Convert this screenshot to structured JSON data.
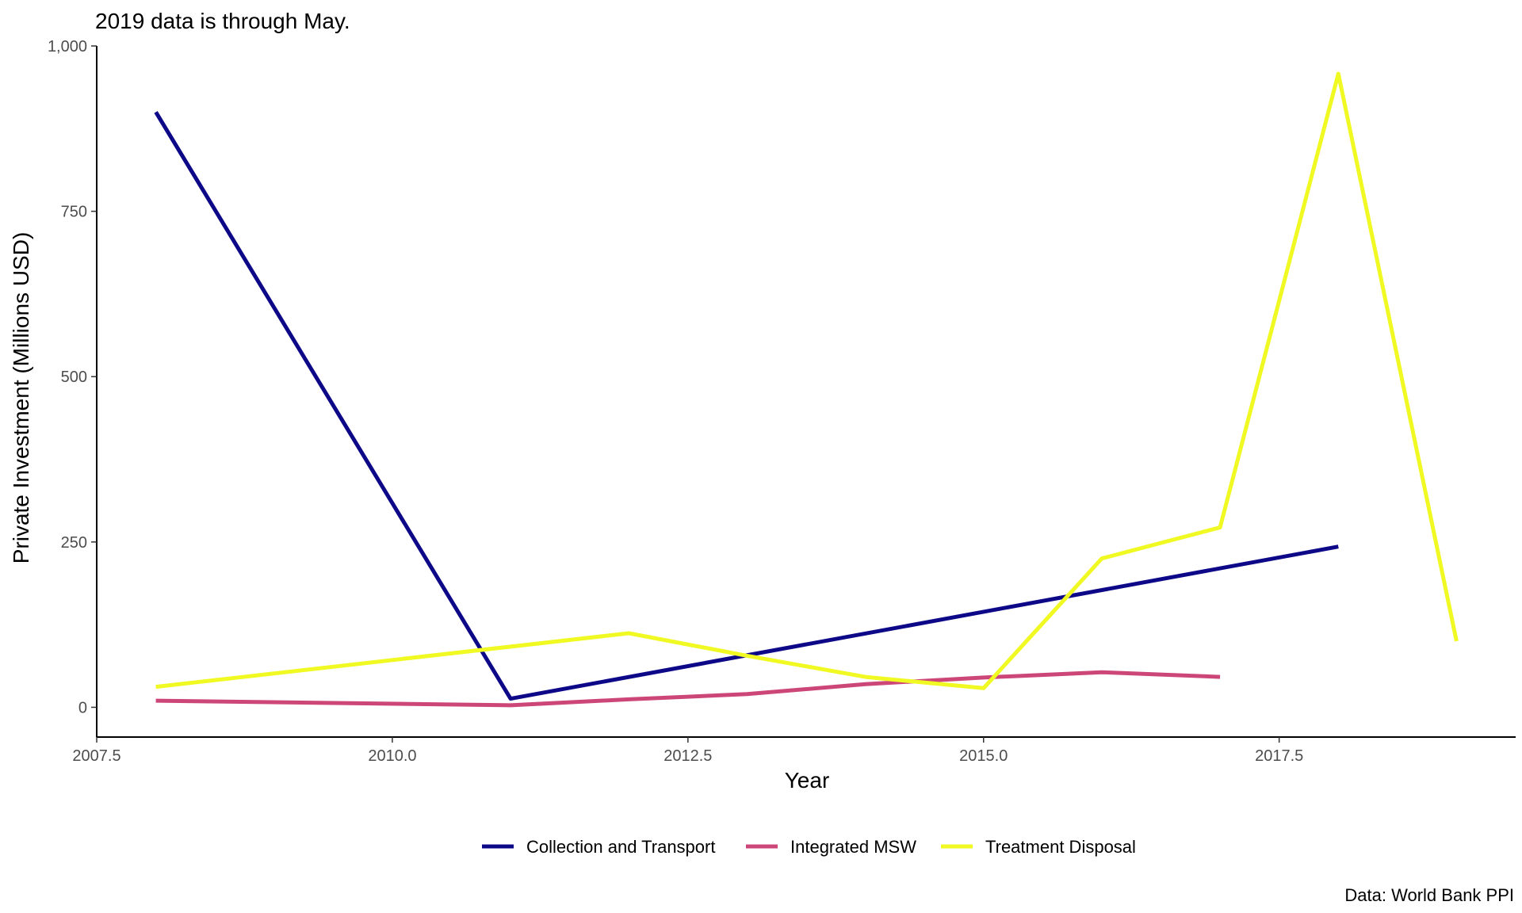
{
  "chart_data": {
    "type": "line",
    "subtitle": "2019 data is through May.",
    "xlabel": "Year",
    "ylabel": "Private Investment (Millions USD)",
    "caption": "Data: World Bank PPI",
    "xlim": [
      2007.5,
      2019.5
    ],
    "ylim": [
      -45,
      1000
    ],
    "x_ticks": [
      2007.5,
      2010.0,
      2012.5,
      2015.0,
      2017.5
    ],
    "x_tick_labels": [
      "2007.5",
      "2010.0",
      "2012.5",
      "2015.0",
      "2017.5"
    ],
    "y_ticks": [
      0,
      250,
      500,
      750,
      1000
    ],
    "y_tick_labels": [
      "0",
      "250",
      "500",
      "750",
      "1,000"
    ],
    "grid": false,
    "legend_position": "bottom",
    "series": [
      {
        "name": "Collection and Transport",
        "color": "#0d0887",
        "x": [
          2008,
          2011,
          2018
        ],
        "y": [
          900,
          13,
          243
        ]
      },
      {
        "name": "Integrated MSW",
        "color": "#cc4778",
        "x": [
          2008,
          2011,
          2012,
          2013,
          2014,
          2015,
          2016,
          2017
        ],
        "y": [
          10,
          3,
          12,
          20,
          35,
          45,
          53,
          46
        ]
      },
      {
        "name": "Treatment Disposal",
        "color": "#f0f921",
        "x": [
          2008,
          2012,
          2013,
          2014,
          2015,
          2016,
          2017,
          2018,
          2019
        ],
        "y": [
          31,
          112,
          78,
          46,
          29,
          225,
          272,
          958,
          100
        ]
      }
    ]
  }
}
